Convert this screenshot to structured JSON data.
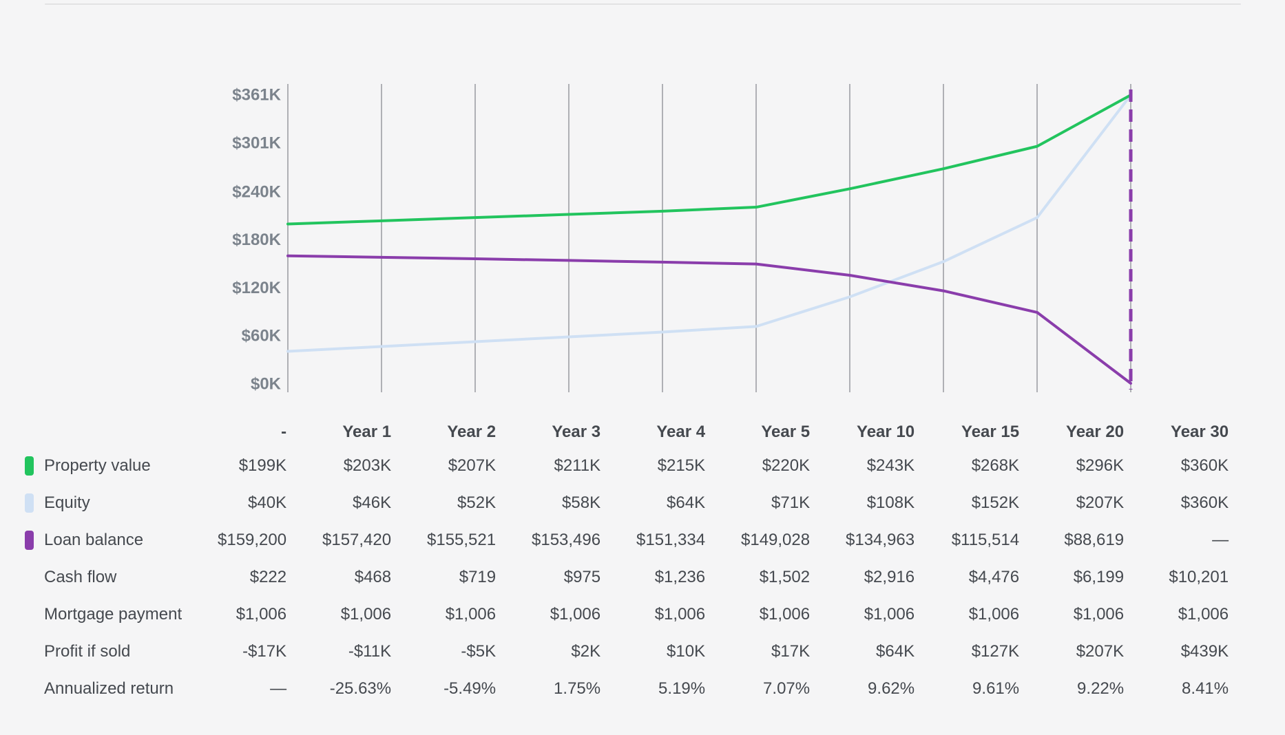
{
  "page": {
    "background": "#f5f5f6",
    "top_divider_color": "#e2e2e3"
  },
  "colors": {
    "property_value": "#22c45e",
    "equity": "#cfe0f4",
    "loan_balance": "#8a3dab",
    "gridline": "#98999f",
    "axis_label": "#7b838c",
    "table_text": "#45494f"
  },
  "chart_data": {
    "type": "line",
    "title": "",
    "xlabel": "",
    "ylabel": "",
    "x_categories": [
      "-",
      "Year 1",
      "Year 2",
      "Year 3",
      "Year 4",
      "Year 5",
      "Year 10",
      "Year 15",
      "Year 20",
      "Year 30"
    ],
    "y_tick_labels": [
      "$361K",
      "$301K",
      "$240K",
      "$180K",
      "$120K",
      "$60K",
      "$0K"
    ],
    "y_tick_values": [
      361,
      301,
      240,
      180,
      120,
      60,
      0
    ],
    "ylim": [
      0,
      361
    ],
    "grid": "vertical-gridlines-only",
    "legend_position": "table-row-labels-left",
    "series": [
      {
        "name": "Property value",
        "color": "#22c45e",
        "values_k": [
          199,
          203,
          207,
          211,
          215,
          220,
          243,
          268,
          296,
          360
        ]
      },
      {
        "name": "Equity",
        "color": "#cfe0f4",
        "values_k": [
          40,
          46,
          52,
          58,
          64,
          71,
          108,
          152,
          207,
          360
        ]
      },
      {
        "name": "Loan balance",
        "color": "#8a3dab",
        "values_k": [
          159.2,
          157.42,
          155.521,
          153.496,
          151.334,
          149.028,
          134.963,
          115.514,
          88.619,
          0
        ]
      }
    ],
    "annotations": [
      {
        "type": "dashed-vertical-line",
        "x_category": "Year 30",
        "color": "#8a3dab"
      }
    ]
  },
  "table": {
    "columns": [
      "-",
      "Year 1",
      "Year 2",
      "Year 3",
      "Year 4",
      "Year 5",
      "Year 10",
      "Year 15",
      "Year 20",
      "Year 30"
    ],
    "rows": [
      {
        "label": "Property value",
        "swatch": "#22c45e",
        "values": [
          "$199K",
          "$203K",
          "$207K",
          "$211K",
          "$215K",
          "$220K",
          "$243K",
          "$268K",
          "$296K",
          "$360K"
        ]
      },
      {
        "label": "Equity",
        "swatch": "#cfe0f4",
        "values": [
          "$40K",
          "$46K",
          "$52K",
          "$58K",
          "$64K",
          "$71K",
          "$108K",
          "$152K",
          "$207K",
          "$360K"
        ]
      },
      {
        "label": "Loan balance",
        "swatch": "#8a3dab",
        "values": [
          "$159,200",
          "$157,420",
          "$155,521",
          "$153,496",
          "$151,334",
          "$149,028",
          "$134,963",
          "$115,514",
          "$88,619",
          "—"
        ]
      },
      {
        "label": "Cash flow",
        "values": [
          "$222",
          "$468",
          "$719",
          "$975",
          "$1,236",
          "$1,502",
          "$2,916",
          "$4,476",
          "$6,199",
          "$10,201"
        ]
      },
      {
        "label": "Mortgage payment",
        "values": [
          "$1,006",
          "$1,006",
          "$1,006",
          "$1,006",
          "$1,006",
          "$1,006",
          "$1,006",
          "$1,006",
          "$1,006",
          "$1,006"
        ]
      },
      {
        "label": "Profit if sold",
        "values": [
          "-$17K",
          "-$11K",
          "-$5K",
          "$2K",
          "$10K",
          "$17K",
          "$64K",
          "$127K",
          "$207K",
          "$439K"
        ]
      },
      {
        "label": "Annualized return",
        "values": [
          "—",
          "-25.63%",
          "-5.49%",
          "1.75%",
          "5.19%",
          "7.07%",
          "9.62%",
          "9.61%",
          "9.22%",
          "8.41%"
        ]
      }
    ]
  }
}
